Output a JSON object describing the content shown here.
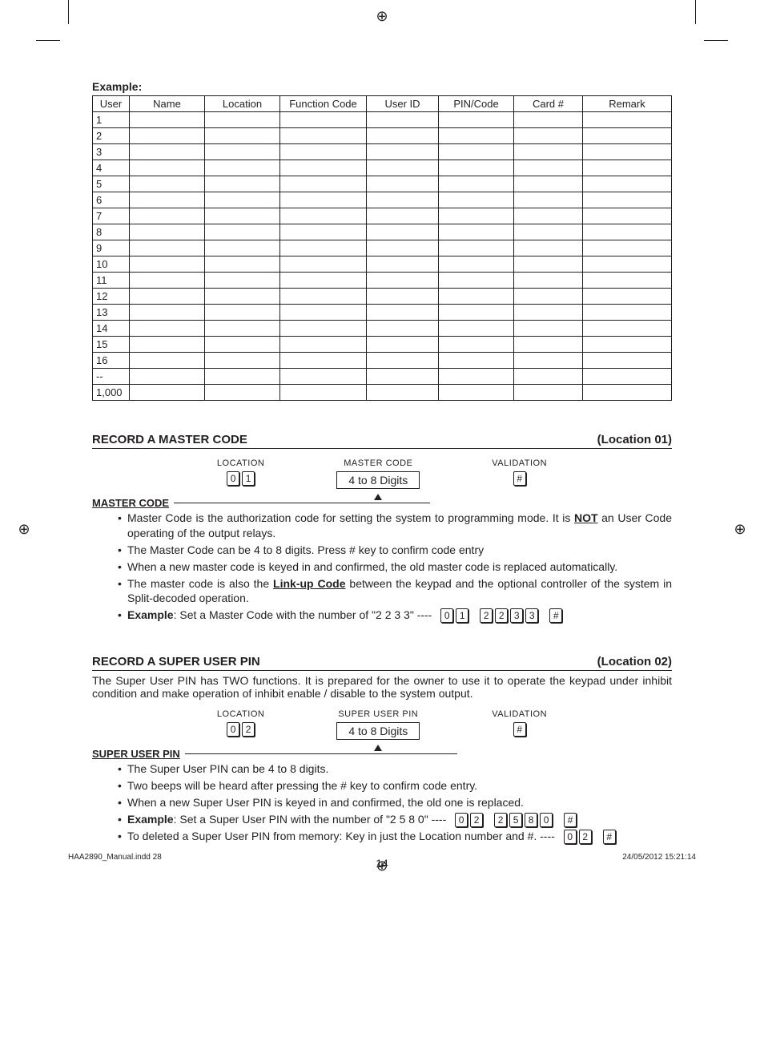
{
  "example_label": "Example:",
  "table": {
    "headers": [
      "User",
      "Name",
      "Location",
      "Function Code",
      "User ID",
      "PIN/Code",
      "Card #",
      "Remark"
    ],
    "rows": [
      "1",
      "2",
      "3",
      "4",
      "5",
      "6",
      "7",
      "8",
      "9",
      "10",
      "11",
      "12",
      "13",
      "14",
      "15",
      "16",
      "--",
      "1,000"
    ]
  },
  "section1": {
    "title": "RECORD A MASTER CODE",
    "location": "(Location 01)",
    "diag": {
      "col1": "LOCATION",
      "col2": "MASTER CODE",
      "col3": "VALIDATION",
      "box": "4 to 8 Digits",
      "loc_keys": [
        "0",
        "1"
      ],
      "val_key": "#"
    },
    "sub": "MASTER CODE",
    "bullets": [
      {
        "pre": "Master Code is the authorization code for setting the system to programming mode. It is ",
        "u": "NOT",
        "post": " an User Code operating of the output relays."
      },
      {
        "text": "The Master Code can be 4 to 8 digits. Press # key to confirm code entry"
      },
      {
        "text": "When a new master code is keyed in and confirmed, the old master code is replaced automatically."
      },
      {
        "pre": "The master code is also the ",
        "u": "Link-up Code",
        "post": " between the keypad and the optional controller of the system in Split-decoded operation."
      },
      {
        "b": "Example",
        "post2": ": Set a Master Code with the number of \"2 2 3 3\" ---- ",
        "keys": [
          [
            "0",
            "1"
          ],
          [
            "2",
            "2",
            "3",
            "3"
          ],
          [
            "#"
          ]
        ]
      }
    ]
  },
  "section2": {
    "title": "RECORD A SUPER USER PIN",
    "location": "(Location 02)",
    "intro": "The Super User PIN has TWO functions. It is prepared for the owner to use it to operate the keypad under inhibit condition and make operation of inhibit enable / disable to the system output.",
    "diag": {
      "col1": "LOCATION",
      "col2": "SUPER USER PIN",
      "col3": "VALIDATION",
      "box": "4 to 8 Digits",
      "loc_keys": [
        "0",
        "2"
      ],
      "val_key": "#"
    },
    "sub": "SUPER USER PIN",
    "bullets": [
      {
        "text": "The Super User PIN can be 4 to 8 digits."
      },
      {
        "text": "Two beeps will be heard after pressing the # key to confirm code entry."
      },
      {
        "text": "When a new Super User PIN is keyed in and confirmed, the old one is replaced."
      },
      {
        "b": "Example",
        "post2": ": Set a Super User PIN with the number of \"2 5 8 0\" ---- ",
        "keys": [
          [
            "0",
            "2"
          ],
          [
            "2",
            "5",
            "8",
            "0"
          ],
          [
            "#"
          ]
        ]
      },
      {
        "pre2": "To deleted a Super User PIN from memory: Key in just the Location number and #. ---- ",
        "keys": [
          [
            "0",
            "2"
          ],
          [
            "#"
          ]
        ]
      }
    ]
  },
  "page_num": "14",
  "footer": {
    "left": "HAA2890_Manual.indd   28",
    "right": "24/05/2012   15:21:14"
  },
  "reg_glyph": "⊕"
}
